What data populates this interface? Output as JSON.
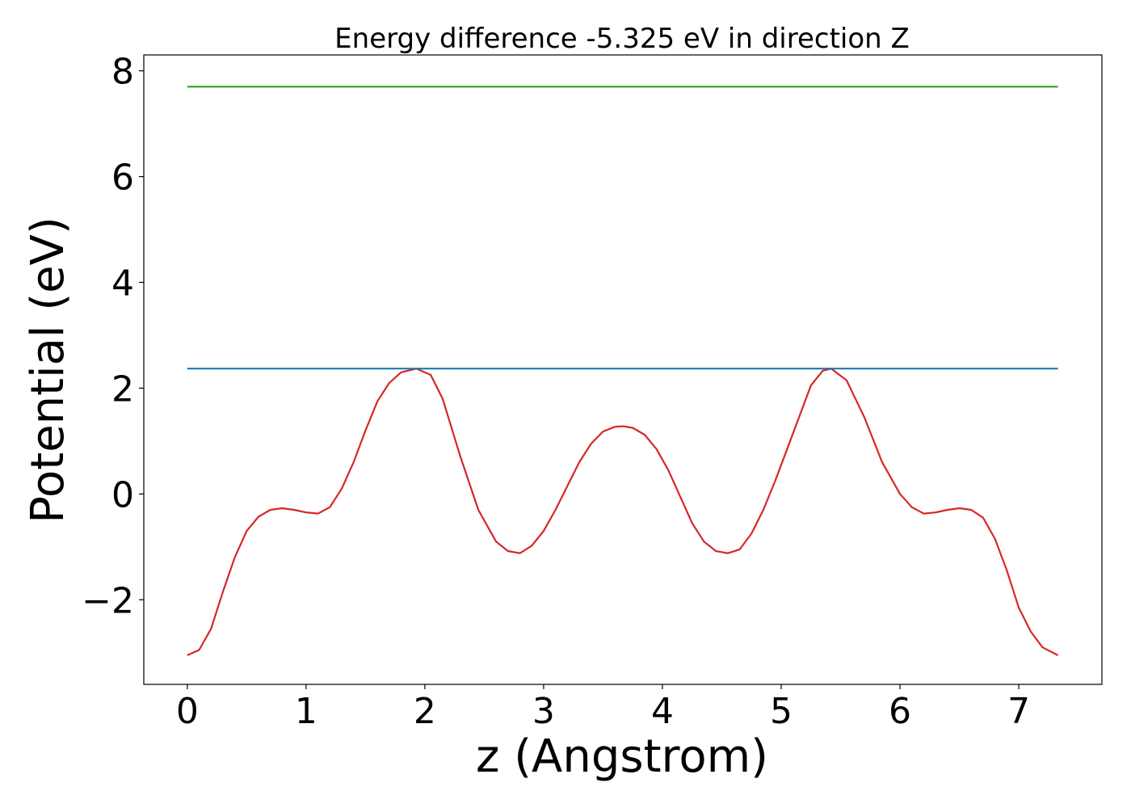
{
  "chart_data": {
    "type": "line",
    "title": "Energy difference -5.325 eV in direction Z",
    "xlabel": "z (Angstrom)",
    "ylabel": "Potential (eV)",
    "xlim": [
      -0.366,
      7.7
    ],
    "ylim": [
      -3.6,
      8.3
    ],
    "xticks": [
      0,
      1,
      2,
      3,
      4,
      5,
      6,
      7
    ],
    "xtick_labels": [
      "0",
      "1",
      "2",
      "3",
      "4",
      "5",
      "6",
      "7"
    ],
    "yticks": [
      -2,
      0,
      2,
      4,
      6,
      8
    ],
    "ytick_labels": [
      "−2",
      "0",
      "2",
      "4",
      "6",
      "8"
    ],
    "grid": false,
    "series": [
      {
        "color": "#d62728",
        "x": [
          0.0,
          0.1,
          0.2,
          0.3,
          0.4,
          0.5,
          0.6,
          0.7,
          0.8,
          0.9,
          1.0,
          1.1,
          1.2,
          1.3,
          1.4,
          1.5,
          1.6,
          1.7,
          1.8,
          1.93,
          2.05,
          2.15,
          2.3,
          2.45,
          2.6,
          2.7,
          2.8,
          2.9,
          3.0,
          3.1,
          3.2,
          3.3,
          3.4,
          3.5,
          3.6,
          3.67,
          3.75,
          3.85,
          3.95,
          4.05,
          4.15,
          4.25,
          4.35,
          4.45,
          4.55,
          4.65,
          4.75,
          4.85,
          4.95,
          5.05,
          5.15,
          5.25,
          5.35,
          5.42,
          5.55,
          5.7,
          5.85,
          6.0,
          6.1,
          6.2,
          6.3,
          6.4,
          6.5,
          6.6,
          6.7,
          6.8,
          6.9,
          7.0,
          7.1,
          7.2,
          7.33
        ],
        "values": [
          -3.05,
          -2.95,
          -2.55,
          -1.85,
          -1.2,
          -0.7,
          -0.43,
          -0.3,
          -0.27,
          -0.3,
          -0.35,
          -0.37,
          -0.25,
          0.1,
          0.6,
          1.2,
          1.75,
          2.1,
          2.3,
          2.37,
          2.25,
          1.8,
          0.7,
          -0.3,
          -0.9,
          -1.08,
          -1.12,
          -0.98,
          -0.7,
          -0.3,
          0.15,
          0.6,
          0.95,
          1.18,
          1.27,
          1.28,
          1.25,
          1.12,
          0.85,
          0.45,
          -0.05,
          -0.55,
          -0.9,
          -1.08,
          -1.12,
          -1.05,
          -0.75,
          -0.3,
          0.25,
          0.85,
          1.45,
          2.05,
          2.33,
          2.37,
          2.15,
          1.45,
          0.6,
          0.0,
          -0.25,
          -0.37,
          -0.35,
          -0.3,
          -0.27,
          -0.3,
          -0.45,
          -0.85,
          -1.45,
          -2.15,
          -2.6,
          -2.9,
          -3.05
        ]
      },
      {
        "color": "#1f77b4",
        "x": [
          0.0,
          7.33
        ],
        "values": [
          2.37,
          2.37
        ]
      },
      {
        "color": "#2ca02c",
        "x": [
          0.0,
          7.33
        ],
        "values": [
          7.7,
          7.7
        ]
      }
    ]
  }
}
